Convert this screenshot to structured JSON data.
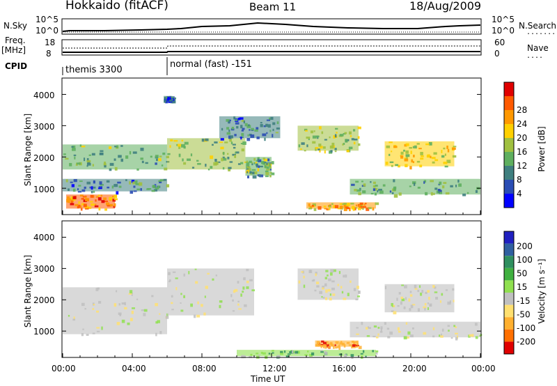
{
  "header": {
    "station": "Hokkaido (fitACF)",
    "beam": "Beam 11",
    "date": "18/Aug/2009"
  },
  "top_panels": {
    "nsky_label": "N.Sky",
    "nsky_ticks": [
      "10^5",
      "10^0"
    ],
    "nsearch_label": "N.Search",
    "nsearch_ticks": [
      "10^5",
      "10^0"
    ],
    "freq_label": "Freq.",
    "freq_unit": "[MHz]",
    "freq_ticks": [
      "18",
      "8"
    ],
    "nave_label": "Nave",
    "nave_ticks": [
      "60",
      "0"
    ],
    "cpid_label": "CPID",
    "cpid_segments": [
      {
        "label": "themis 3300",
        "start": 0,
        "end": 6
      },
      {
        "label": "normal (fast) -151",
        "start": 6,
        "end": 24
      }
    ]
  },
  "x_axis": {
    "label": "Time UT",
    "ticks": [
      "00:00",
      "04:00",
      "08:00",
      "12:00",
      "16:00",
      "20:00",
      "00:00"
    ],
    "range_hours": [
      0,
      24
    ]
  },
  "power_panel": {
    "ylabel": "Slant Range [km]",
    "yticks": [
      "1000",
      "2000",
      "3000",
      "4000"
    ],
    "colorbar_label": "Power [dB]",
    "colorbar_ticks": [
      "4",
      "8",
      "12",
      "16",
      "20",
      "24",
      "28"
    ],
    "colorbar_colors": [
      "#0000ff",
      "#2a4db4",
      "#3f7f7f",
      "#5faf5f",
      "#a0c040",
      "#ffd000",
      "#ff9800",
      "#ff5a00",
      "#e00000"
    ]
  },
  "velocity_panel": {
    "ylabel": "Slant Range [km]",
    "yticks": [
      "1000",
      "2000",
      "3000",
      "4000"
    ],
    "colorbar_label": "Velocity [m s⁻¹]",
    "colorbar_ticks": [
      "200",
      "100",
      "50",
      "15",
      "-15",
      "-50",
      "-100",
      "-200"
    ],
    "colorbar_colors": [
      "#2020c0",
      "#3060a0",
      "#2f8f5f",
      "#40b040",
      "#90e050",
      "#c0c0c0",
      "#ffe070",
      "#ffb030",
      "#ff7000",
      "#e00000"
    ]
  },
  "chart_data": {
    "type": "heatmap",
    "x_range_hours": [
      0,
      24
    ],
    "y_range_km": [
      180,
      4500
    ],
    "power_regions": [
      {
        "t0": 0.0,
        "t1": 6.0,
        "r0": 1600,
        "r1": 2400,
        "level_db": 12
      },
      {
        "t0": 0.2,
        "t1": 3.0,
        "r0": 350,
        "r1": 800,
        "level_db": 26
      },
      {
        "t0": 0.0,
        "t1": 6.0,
        "r0": 900,
        "r1": 1300,
        "level_db": 8
      },
      {
        "t0": 6.0,
        "t1": 10.5,
        "r0": 1600,
        "r1": 2600,
        "level_db": 14
      },
      {
        "t0": 9.0,
        "t1": 12.5,
        "r0": 2600,
        "r1": 3300,
        "level_db": 8
      },
      {
        "t0": 10.5,
        "t1": 12.0,
        "r0": 1400,
        "r1": 2000,
        "level_db": 12
      },
      {
        "t0": 13.5,
        "t1": 17.0,
        "r0": 2200,
        "r1": 3000,
        "level_db": 14
      },
      {
        "t0": 18.5,
        "t1": 22.5,
        "r0": 1700,
        "r1": 2500,
        "level_db": 18
      },
      {
        "t0": 16.5,
        "t1": 24.0,
        "r0": 800,
        "r1": 1300,
        "level_db": 10
      },
      {
        "t0": 14.0,
        "t1": 18.0,
        "r0": 350,
        "r1": 550,
        "level_db": 22
      },
      {
        "t0": 5.8,
        "t1": 6.3,
        "r0": 3800,
        "r1": 3950,
        "level_db": 6
      }
    ],
    "velocity_regions": [
      {
        "t0": 0.0,
        "t1": 6.0,
        "r0": 900,
        "r1": 2400,
        "velocity": 0
      },
      {
        "t0": 6.0,
        "t1": 11.0,
        "r0": 1500,
        "r1": 3000,
        "velocity": 0
      },
      {
        "t0": 13.5,
        "t1": 17.0,
        "r0": 2000,
        "r1": 3000,
        "velocity": 0
      },
      {
        "t0": 18.5,
        "t1": 22.5,
        "r0": 1600,
        "r1": 2500,
        "velocity": 0
      },
      {
        "t0": 16.5,
        "t1": 24.0,
        "r0": 800,
        "r1": 1300,
        "velocity": 0
      },
      {
        "t0": 14.5,
        "t1": 17.0,
        "r0": 500,
        "r1": 700,
        "velocity": -80
      },
      {
        "t0": 10.0,
        "t1": 18.0,
        "r0": 200,
        "r1": 400,
        "velocity": 30
      }
    ]
  }
}
